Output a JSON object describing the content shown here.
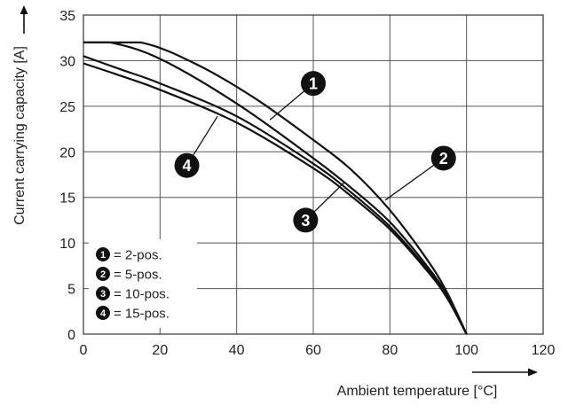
{
  "chart_data": {
    "type": "line",
    "xlabel": "Ambient temperature [°C]",
    "ylabel": "Current carrying capacity [A]",
    "xlim": [
      0,
      120
    ],
    "ylim": [
      0,
      35
    ],
    "xticks": [
      0,
      20,
      40,
      60,
      80,
      100,
      120
    ],
    "yticks": [
      0,
      5,
      10,
      15,
      20,
      25,
      30,
      35
    ],
    "grid": true,
    "legend_position": "bottom-left",
    "series": [
      {
        "marker": "1",
        "name": "2-pos.",
        "x": [
          0,
          15,
          30,
          45,
          60,
          70,
          80,
          90,
          95,
          100
        ],
        "y": [
          32,
          32,
          29.5,
          25.8,
          21.3,
          18,
          13.6,
          8,
          4.5,
          0
        ]
      },
      {
        "marker": "2",
        "name": "5-pos.",
        "x": [
          0,
          7,
          20,
          40,
          60,
          70,
          80,
          90,
          95,
          100
        ],
        "y": [
          32,
          32,
          30.2,
          25.3,
          19.3,
          16,
          12.3,
          7.3,
          4.2,
          0
        ]
      },
      {
        "marker": "3",
        "name": "10-pos.",
        "x": [
          0,
          10,
          20,
          40,
          60,
          70,
          80,
          90,
          95,
          100
        ],
        "y": [
          30.5,
          29,
          27.5,
          23.9,
          18.7,
          15.5,
          11.8,
          7,
          4,
          0
        ]
      },
      {
        "marker": "4",
        "name": "15-pos.",
        "x": [
          0,
          10,
          20,
          40,
          60,
          70,
          80,
          90,
          95,
          100
        ],
        "y": [
          29.7,
          28.3,
          26.8,
          23.2,
          18.2,
          15.1,
          11.5,
          6.8,
          3.9,
          0
        ]
      }
    ],
    "legend": [
      {
        "marker": "1",
        "label": "= 2-pos."
      },
      {
        "marker": "2",
        "label": "= 5-pos."
      },
      {
        "marker": "3",
        "label": "= 10-pos."
      },
      {
        "marker": "4",
        "label": "= 15-pos."
      }
    ],
    "callouts": [
      {
        "marker": "1",
        "x": 60,
        "y": 27.5,
        "lx": 48.7,
        "ly": 23.5
      },
      {
        "marker": "2",
        "x": 94,
        "y": 19.3,
        "lx": 78.8,
        "ly": 14.7
      },
      {
        "marker": "3",
        "x": 58,
        "y": 12.5,
        "lx": 68,
        "ly": 16.6
      },
      {
        "marker": "4",
        "x": 27,
        "y": 18.5,
        "lx": 35,
        "ly": 23.9
      }
    ],
    "colors": {
      "line": "#111111",
      "grid": "#555555",
      "badge": "#111111"
    }
  }
}
